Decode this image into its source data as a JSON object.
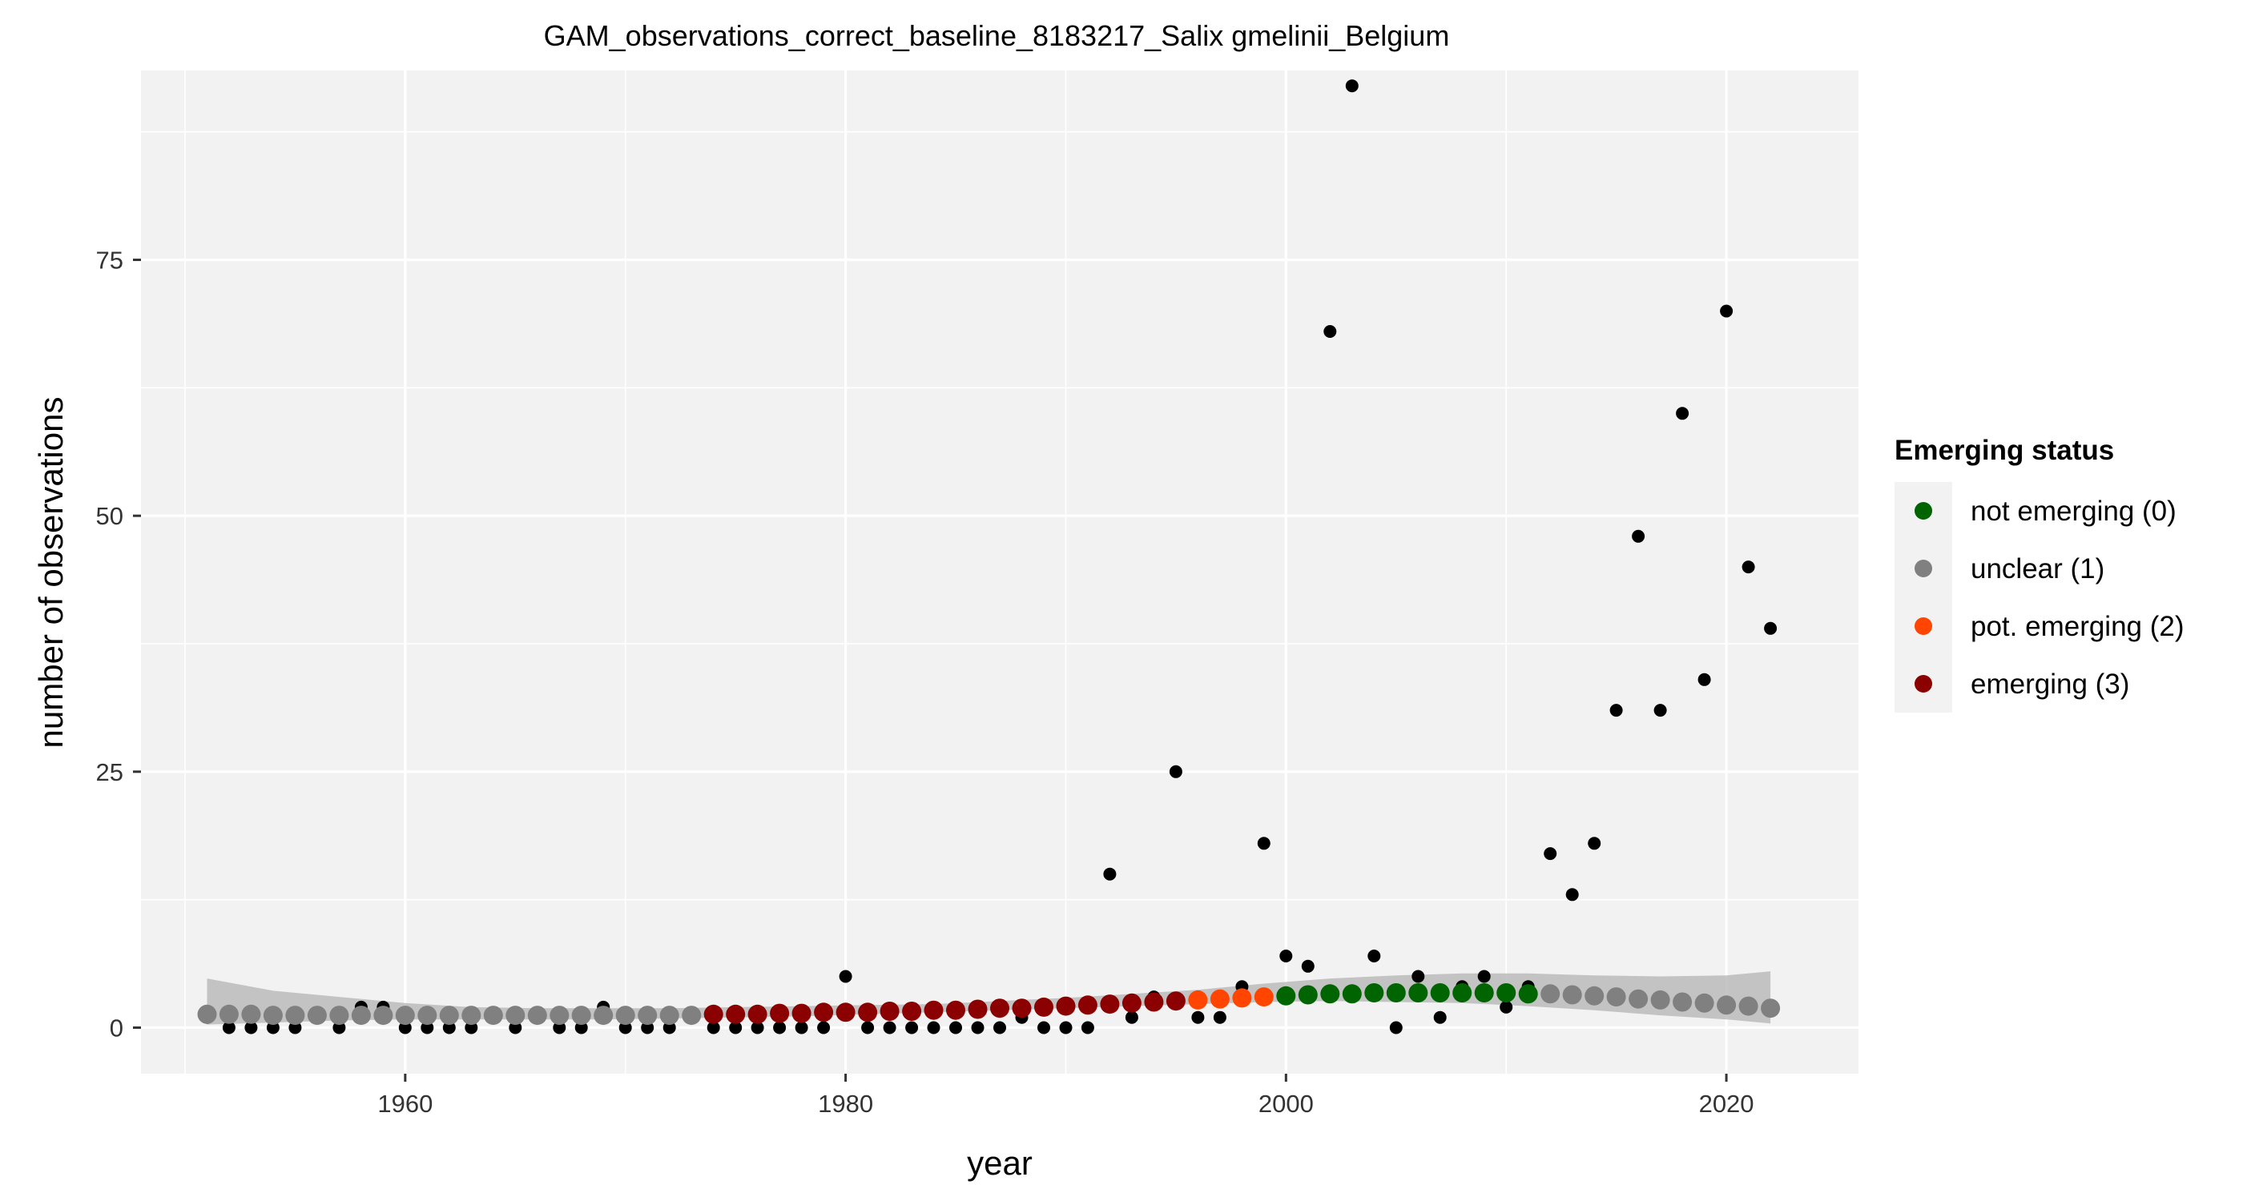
{
  "chart_data": {
    "type": "scatter",
    "title": "GAM_observations_correct_baseline_8183217_Salix gmelinii_Belgium",
    "xlabel": "year",
    "ylabel": "number of observations",
    "xlim": [
      1948,
      2026
    ],
    "ylim": [
      -4.5,
      93.5
    ],
    "x_ticks": [
      1960,
      1980,
      2000,
      2020
    ],
    "y_ticks": [
      0,
      25,
      50,
      75
    ],
    "grid": true,
    "legend_position": "right",
    "legend_title": "Emerging status",
    "legend": [
      {
        "label": "not emerging (0)",
        "color": "#006400"
      },
      {
        "label": "unclear (1)",
        "color": "#808080"
      },
      {
        "label": "pot. emerging (2)",
        "color": "#FF4500"
      },
      {
        "label": "emerging (3)",
        "color": "#8B0000"
      }
    ],
    "observations": {
      "color": "#000000",
      "x": [
        1951,
        1952,
        1953,
        1954,
        1955,
        1956,
        1957,
        1958,
        1959,
        1960,
        1961,
        1962,
        1963,
        1964,
        1965,
        1966,
        1967,
        1968,
        1969,
        1970,
        1971,
        1972,
        1973,
        1974,
        1975,
        1976,
        1977,
        1978,
        1979,
        1980,
        1981,
        1982,
        1983,
        1984,
        1985,
        1986,
        1987,
        1988,
        1989,
        1990,
        1991,
        1992,
        1993,
        1994,
        1995,
        1996,
        1997,
        1998,
        1999,
        2000,
        2001,
        2002,
        2003,
        2004,
        2005,
        2006,
        2007,
        2008,
        2009,
        2010,
        2011,
        2012,
        2013,
        2014,
        2015,
        2016,
        2017,
        2018,
        2019,
        2020,
        2021,
        2022
      ],
      "y": [
        1,
        0,
        0,
        0,
        0,
        1,
        0,
        2,
        2,
        0,
        0,
        0,
        0,
        1,
        0,
        1,
        0,
        0,
        2,
        0,
        0,
        0,
        1,
        0,
        0,
        0,
        0,
        0,
        0,
        5,
        0,
        0,
        0,
        0,
        0,
        0,
        0,
        1,
        0,
        0,
        0,
        15,
        1,
        3,
        25,
        1,
        1,
        4,
        18,
        7,
        6,
        68,
        92,
        7,
        0,
        5,
        1,
        4,
        5,
        2,
        4,
        17,
        13,
        18,
        31,
        48,
        31,
        60,
        34,
        70,
        45,
        39
      ]
    },
    "gam_fit": {
      "x": [
        1951,
        1952,
        1953,
        1954,
        1955,
        1956,
        1957,
        1958,
        1959,
        1960,
        1961,
        1962,
        1963,
        1964,
        1965,
        1966,
        1967,
        1968,
        1969,
        1970,
        1971,
        1972,
        1973,
        1974,
        1975,
        1976,
        1977,
        1978,
        1979,
        1980,
        1981,
        1982,
        1983,
        1984,
        1985,
        1986,
        1987,
        1988,
        1989,
        1990,
        1991,
        1992,
        1993,
        1994,
        1995,
        1996,
        1997,
        1998,
        1999,
        2000,
        2001,
        2002,
        2003,
        2004,
        2005,
        2006,
        2007,
        2008,
        2009,
        2010,
        2011,
        2012,
        2013,
        2014,
        2015,
        2016,
        2017,
        2018,
        2019,
        2020,
        2021,
        2022
      ],
      "y": [
        1.3,
        1.3,
        1.3,
        1.2,
        1.2,
        1.2,
        1.2,
        1.2,
        1.2,
        1.2,
        1.2,
        1.2,
        1.2,
        1.2,
        1.2,
        1.2,
        1.2,
        1.2,
        1.2,
        1.2,
        1.2,
        1.2,
        1.2,
        1.3,
        1.3,
        1.3,
        1.4,
        1.4,
        1.5,
        1.5,
        1.5,
        1.6,
        1.6,
        1.7,
        1.7,
        1.8,
        1.9,
        1.9,
        2.0,
        2.1,
        2.2,
        2.3,
        2.4,
        2.5,
        2.6,
        2.7,
        2.8,
        2.9,
        3.0,
        3.1,
        3.2,
        3.3,
        3.3,
        3.4,
        3.4,
        3.4,
        3.4,
        3.4,
        3.4,
        3.4,
        3.3,
        3.3,
        3.2,
        3.1,
        3.0,
        2.8,
        2.7,
        2.5,
        2.4,
        2.2,
        2.1,
        1.9
      ],
      "status": [
        1,
        1,
        1,
        1,
        1,
        1,
        1,
        1,
        1,
        1,
        1,
        1,
        1,
        1,
        1,
        1,
        1,
        1,
        1,
        1,
        1,
        1,
        1,
        3,
        3,
        3,
        3,
        3,
        3,
        3,
        3,
        3,
        3,
        3,
        3,
        3,
        3,
        3,
        3,
        3,
        3,
        3,
        3,
        3,
        3,
        2,
        2,
        2,
        2,
        0,
        0,
        0,
        0,
        0,
        0,
        0,
        0,
        0,
        0,
        0,
        0,
        1,
        1,
        1,
        1,
        1,
        1,
        1,
        1,
        1,
        1,
        1
      ]
    },
    "confidence_band": {
      "x": [
        1951,
        1954,
        1957,
        1960,
        1963,
        1966,
        1969,
        1972,
        1975,
        1978,
        1981,
        1984,
        1987,
        1990,
        1993,
        1996,
        1999,
        2002,
        2005,
        2008,
        2011,
        2014,
        2017,
        2020,
        2022
      ],
      "lower": [
        0.3,
        0.5,
        0.7,
        0.8,
        0.8,
        0.8,
        0.8,
        0.9,
        1.0,
        1.1,
        1.3,
        1.5,
        1.7,
        1.9,
        2.1,
        2.3,
        2.5,
        2.6,
        2.5,
        2.4,
        2.1,
        1.7,
        1.2,
        0.8,
        0.4
      ],
      "upper": [
        4.8,
        3.6,
        3.0,
        2.4,
        2.0,
        1.9,
        1.9,
        1.9,
        2.0,
        2.1,
        2.2,
        2.3,
        2.6,
        2.9,
        3.3,
        3.7,
        4.3,
        4.8,
        5.1,
        5.3,
        5.3,
        5.1,
        5.0,
        5.1,
        5.5
      ]
    }
  }
}
